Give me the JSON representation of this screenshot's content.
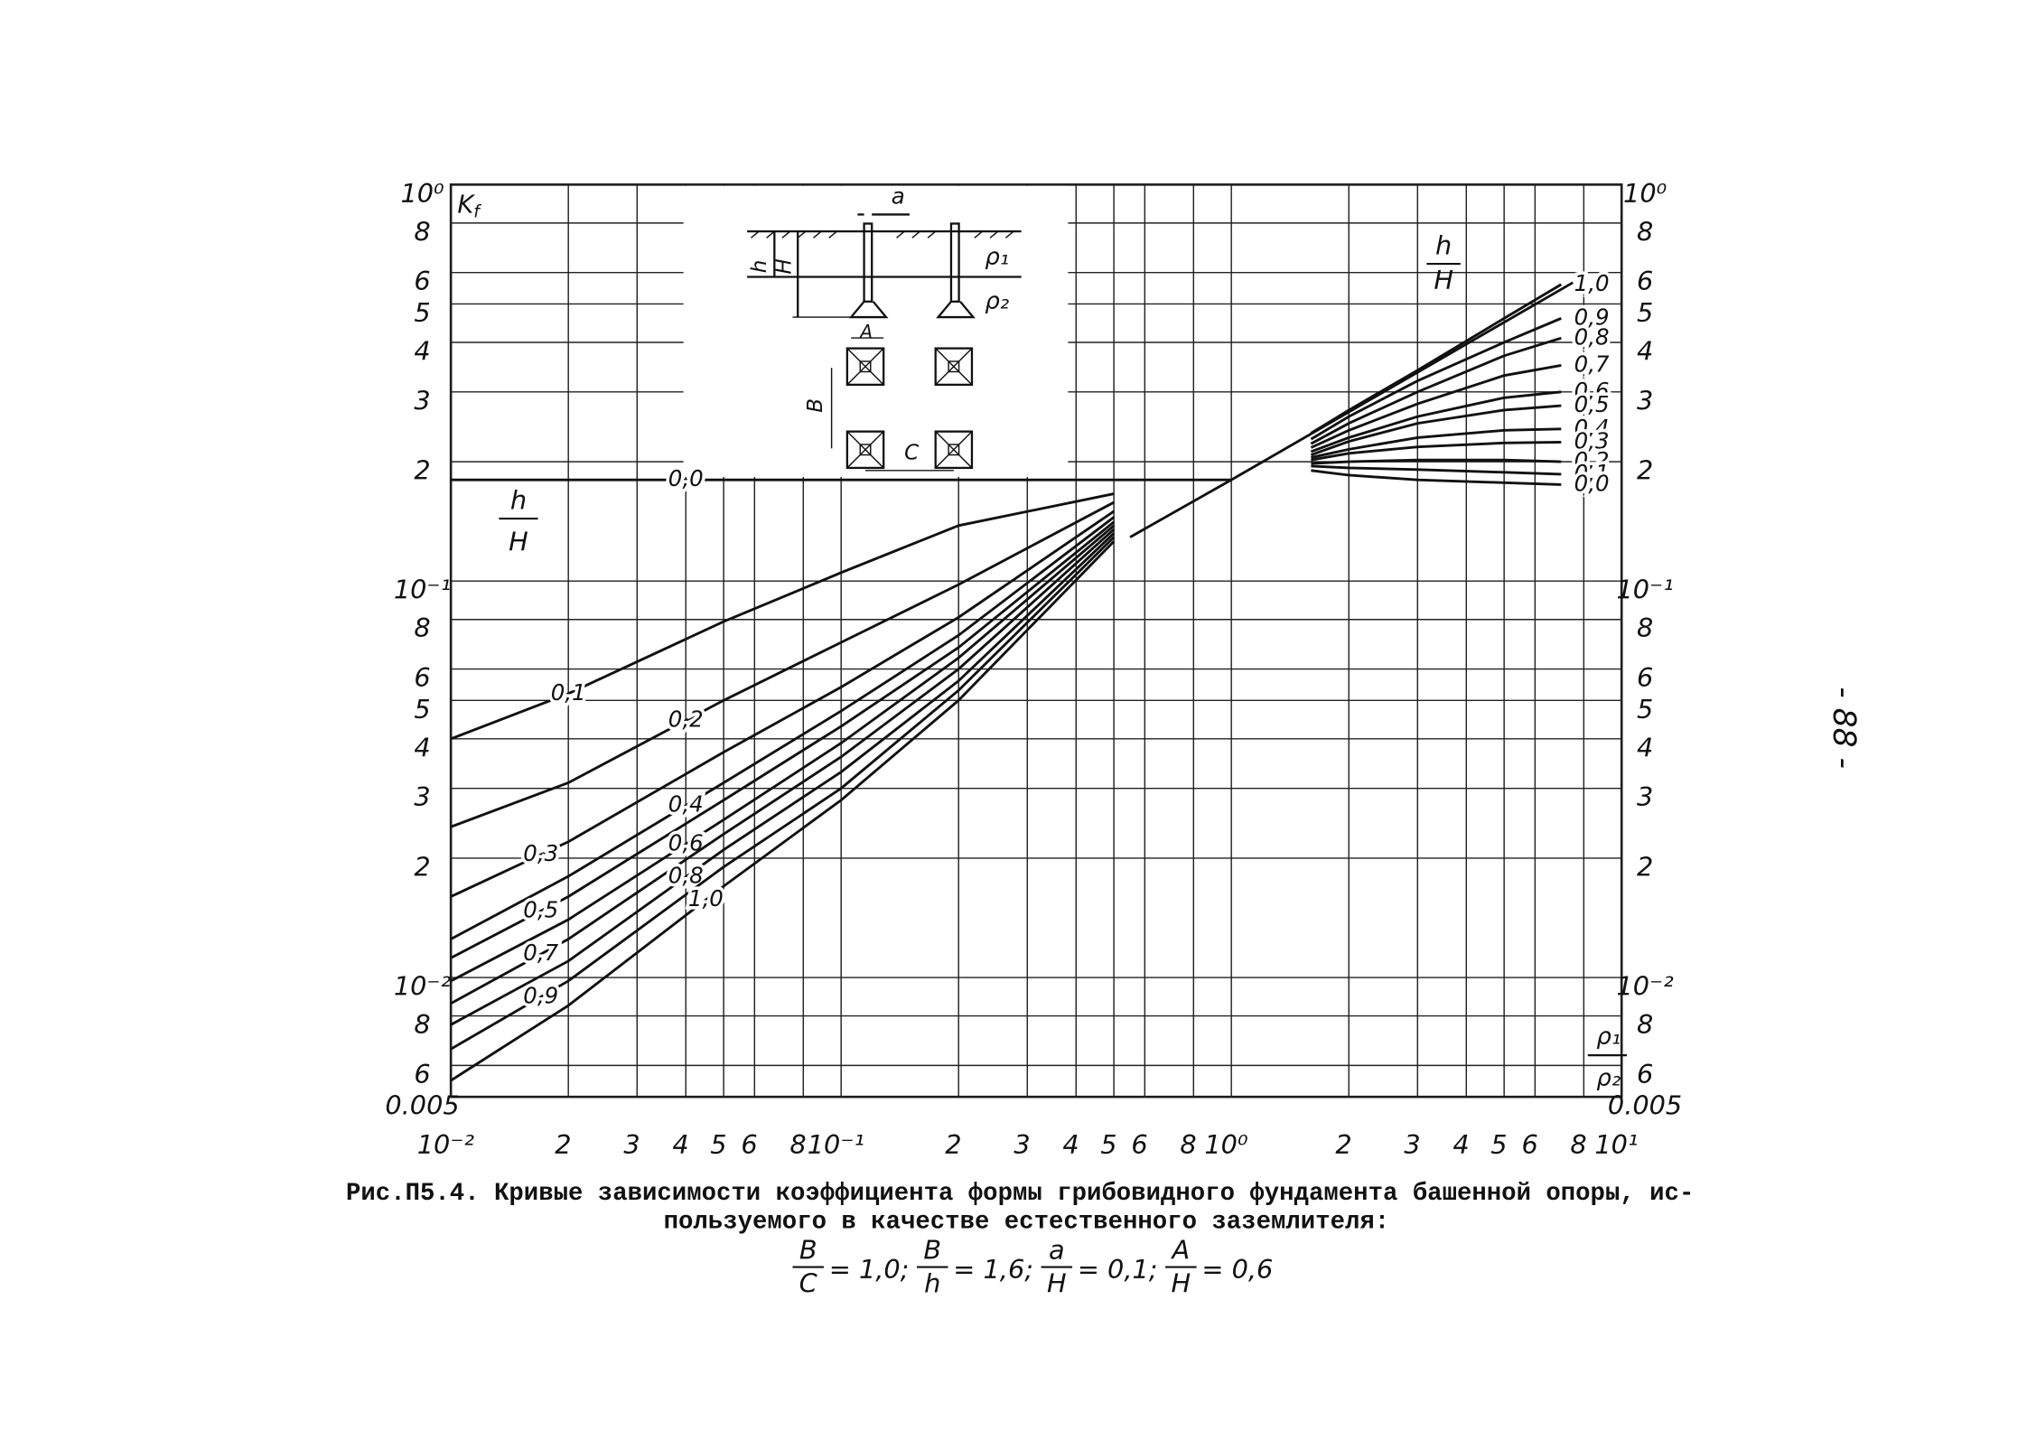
{
  "chart_data": {
    "type": "line",
    "xscale": "log",
    "yscale": "log",
    "grid": true,
    "color": "#111",
    "xlim": [
      0.01,
      10
    ],
    "ylim": [
      0.005,
      1
    ],
    "xticks": [
      {
        "value": 0.01,
        "label": "10⁻²"
      },
      {
        "value": 0.02,
        "label": "2"
      },
      {
        "value": 0.03,
        "label": "3"
      },
      {
        "value": 0.04,
        "label": "4"
      },
      {
        "value": 0.05,
        "label": "5"
      },
      {
        "value": 0.06,
        "label": "6"
      },
      {
        "value": 0.08,
        "label": "8"
      },
      {
        "value": 0.1,
        "label": "10⁻¹"
      },
      {
        "value": 0.2,
        "label": "2"
      },
      {
        "value": 0.3,
        "label": "3"
      },
      {
        "value": 0.4,
        "label": "4"
      },
      {
        "value": 0.5,
        "label": "5"
      },
      {
        "value": 0.6,
        "label": "6"
      },
      {
        "value": 0.8,
        "label": "8"
      },
      {
        "value": 1,
        "label": "10⁰"
      },
      2,
      3,
      4,
      5,
      6,
      8,
      {
        "value": 10,
        "label": "10¹"
      }
    ],
    "yticks": [
      0.005,
      {
        "value": 0.006,
        "label": "6"
      },
      {
        "value": 0.008,
        "label": "8"
      },
      {
        "value": 0.01,
        "label": "10⁻²"
      },
      {
        "value": 0.02,
        "label": "2"
      },
      {
        "value": 0.03,
        "label": "3"
      },
      {
        "value": 0.04,
        "label": "4"
      },
      {
        "value": 0.05,
        "label": "5"
      },
      {
        "value": 0.06,
        "label": "6"
      },
      {
        "value": 0.08,
        "label": "8"
      },
      {
        "value": 0.1,
        "label": "10⁻¹"
      },
      {
        "value": 0.2,
        "label": "2"
      },
      {
        "value": 0.3,
        "label": "3"
      },
      {
        "value": 0.4,
        "label": "4"
      },
      {
        "value": 0.5,
        "label": "5"
      },
      {
        "value": 0.6,
        "label": "6"
      },
      {
        "value": 0.8,
        "label": "8"
      },
      {
        "value": 1,
        "label": "10⁰"
      }
    ],
    "y_label": {
      "main": "K",
      "sub": "f"
    },
    "legend_labels": {
      "left": {
        "num": "h",
        "den": "H"
      },
      "right": {
        "num": "h",
        "den": "H"
      },
      "ratio": {
        "num": "ρ₁",
        "den": "ρ₂"
      }
    },
    "series": [
      {
        "name": "0,0",
        "x": [
          0.01,
          1
        ],
        "values": [
          0.18,
          0.18
        ]
      },
      {
        "name": "0,1",
        "x": [
          0.01,
          0.02,
          0.05,
          0.1,
          0.2,
          0.5
        ],
        "values": [
          0.04,
          0.052,
          0.079,
          0.105,
          0.138,
          0.166
        ]
      },
      {
        "name": "0,2",
        "x": [
          0.01,
          0.02,
          0.05,
          0.1,
          0.2,
          0.5
        ],
        "values": [
          0.024,
          0.031,
          0.05,
          0.07,
          0.098,
          0.158
        ]
      },
      {
        "name": "0,3",
        "x": [
          0.01,
          0.02,
          0.05,
          0.1,
          0.2,
          0.5
        ],
        "values": [
          0.016,
          0.022,
          0.037,
          0.054,
          0.081,
          0.15
        ]
      },
      {
        "name": "0,4",
        "x": [
          0.01,
          0.02,
          0.05,
          0.1,
          0.2,
          0.5
        ],
        "values": [
          0.0125,
          0.018,
          0.031,
          0.047,
          0.073,
          0.145
        ]
      },
      {
        "name": "0,5",
        "x": [
          0.01,
          0.02,
          0.05,
          0.1,
          0.2,
          0.5
        ],
        "values": [
          0.0112,
          0.016,
          0.028,
          0.043,
          0.068,
          0.141
        ]
      },
      {
        "name": "0,6",
        "x": [
          0.01,
          0.02,
          0.05,
          0.1,
          0.2,
          0.5
        ],
        "values": [
          0.0098,
          0.014,
          0.025,
          0.039,
          0.064,
          0.138
        ]
      },
      {
        "name": "0,7",
        "x": [
          0.01,
          0.02,
          0.05,
          0.1,
          0.2,
          0.5
        ],
        "values": [
          0.0086,
          0.0125,
          0.023,
          0.036,
          0.06,
          0.135
        ]
      },
      {
        "name": "0,8",
        "x": [
          0.01,
          0.02,
          0.05,
          0.1,
          0.2,
          0.5
        ],
        "values": [
          0.0076,
          0.011,
          0.021,
          0.033,
          0.056,
          0.132
        ]
      },
      {
        "name": "0,9",
        "x": [
          0.01,
          0.02,
          0.05,
          0.1,
          0.2,
          0.5
        ],
        "values": [
          0.0066,
          0.0098,
          0.019,
          0.03,
          0.053,
          0.129
        ]
      },
      {
        "name": "1,0",
        "x": [
          0.01,
          0.02,
          0.05,
          0.1,
          0.2,
          0.5
        ],
        "values": [
          0.0055,
          0.0085,
          0.017,
          0.028,
          0.05,
          0.126
        ]
      },
      {
        "x": [
          0.55,
          1,
          7.5
        ],
        "values": [
          0.129,
          0.18,
          0.566
        ]
      },
      {
        "name": "1,0",
        "x": [
          1.6,
          2,
          3,
          5,
          7
        ],
        "values": [
          0.236,
          0.27,
          0.34,
          0.46,
          0.56
        ]
      },
      {
        "name": "0,9",
        "x": [
          1.6,
          2,
          3,
          5,
          7
        ],
        "values": [
          0.228,
          0.26,
          0.32,
          0.4,
          0.46
        ]
      },
      {
        "name": "0,8",
        "x": [
          1.6,
          2,
          3,
          5,
          7
        ],
        "values": [
          0.222,
          0.25,
          0.3,
          0.37,
          0.41
        ]
      },
      {
        "name": "0,7",
        "x": [
          1.6,
          2,
          3,
          5,
          7
        ],
        "values": [
          0.217,
          0.24,
          0.28,
          0.33,
          0.35
        ]
      },
      {
        "name": "0,6",
        "x": [
          1.6,
          2,
          3,
          5,
          7
        ],
        "values": [
          0.212,
          0.23,
          0.26,
          0.29,
          0.3
        ]
      },
      {
        "name": "0,5",
        "x": [
          1.6,
          2,
          3,
          5,
          7
        ],
        "values": [
          0.208,
          0.225,
          0.25,
          0.27,
          0.277
        ]
      },
      {
        "name": "0,4",
        "x": [
          1.6,
          2,
          3,
          5,
          7
        ],
        "values": [
          0.205,
          0.215,
          0.23,
          0.24,
          0.242
        ]
      },
      {
        "name": "0,3",
        "x": [
          1.6,
          2,
          3,
          5,
          7
        ],
        "values": [
          0.202,
          0.21,
          0.218,
          0.223,
          0.224
        ]
      },
      {
        "name": "0,2",
        "x": [
          1.6,
          2,
          3,
          5,
          7
        ],
        "values": [
          0.198,
          0.2,
          0.202,
          0.202,
          0.2
        ]
      },
      {
        "name": "0,1",
        "x": [
          1.6,
          2,
          3,
          5,
          7
        ],
        "values": [
          0.195,
          0.193,
          0.191,
          0.188,
          0.186
        ]
      },
      {
        "name": "0,0",
        "x": [
          1.6,
          2,
          3,
          5,
          7
        ],
        "values": [
          0.19,
          0.185,
          0.18,
          0.177,
          0.175
        ]
      }
    ]
  },
  "inset": {
    "a": "a",
    "h": "h",
    "H": "H",
    "rho1": "ρ₁",
    "rho2": "ρ₂",
    "A": "A",
    "B": "B",
    "C": "C"
  },
  "caption": {
    "line1": "Рис.П5.4. Кривые зависимости коэффициента формы грибовидного фундамента башенной опоры, ис-",
    "line2": "пользуемого в качестве естественного заземлителя:",
    "formula": [
      {
        "num": "B",
        "den": "C",
        "rhs": "= 1,0;"
      },
      {
        "num": "B",
        "den": "h",
        "rhs": "= 1,6;"
      },
      {
        "num": "a",
        "den": "H",
        "rhs": "= 0,1;"
      },
      {
        "num": "A",
        "den": "H",
        "rhs": "= 0,6"
      }
    ]
  },
  "page_number": "- 88 -"
}
